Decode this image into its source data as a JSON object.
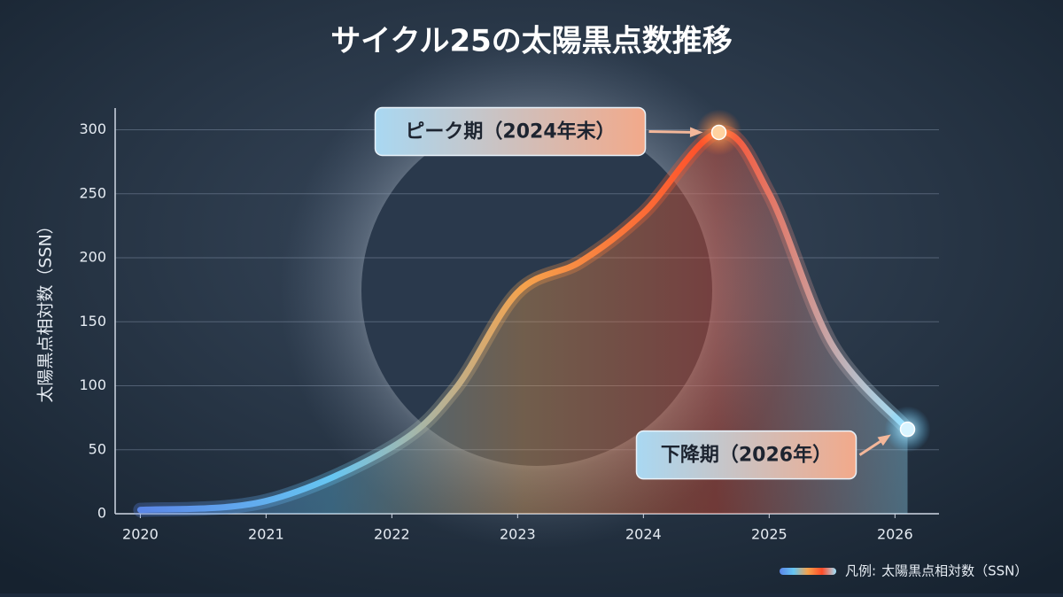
{
  "chart_data": {
    "type": "line",
    "title": "サイクル25の太陽黒点数推移",
    "y_label": "太陽黒点相対数（SSN）",
    "x": [
      2020,
      2021,
      2022,
      2022.5,
      2023,
      2023.5,
      2024,
      2024.6,
      2025,
      2025.5,
      2026.1
    ],
    "xticks": [
      2020,
      2021,
      2022,
      2023,
      2024,
      2025,
      2026
    ],
    "xlim": [
      2019.8,
      2026.35
    ],
    "ylim": [
      0,
      317
    ],
    "yticks": [
      0,
      50,
      100,
      150,
      200,
      250,
      300
    ],
    "grid": true,
    "series": [
      {
        "name": "太陽黒点相対数（SSN）",
        "color": [
          "#5b86e8",
          "#66c6f2",
          "#f5a24c",
          "#ff4b28",
          "#9fe4ff"
        ],
        "values": [
          3,
          10,
          52,
          97,
          173,
          197,
          235,
          298,
          250,
          132,
          66
        ]
      }
    ],
    "legend_label": "凡例:",
    "legend_position": "bottom-right",
    "annotations": [
      {
        "text": "ピーク期（2024年末）",
        "point": 7
      },
      {
        "text": "下降期（2026年）",
        "point": 10
      }
    ]
  }
}
